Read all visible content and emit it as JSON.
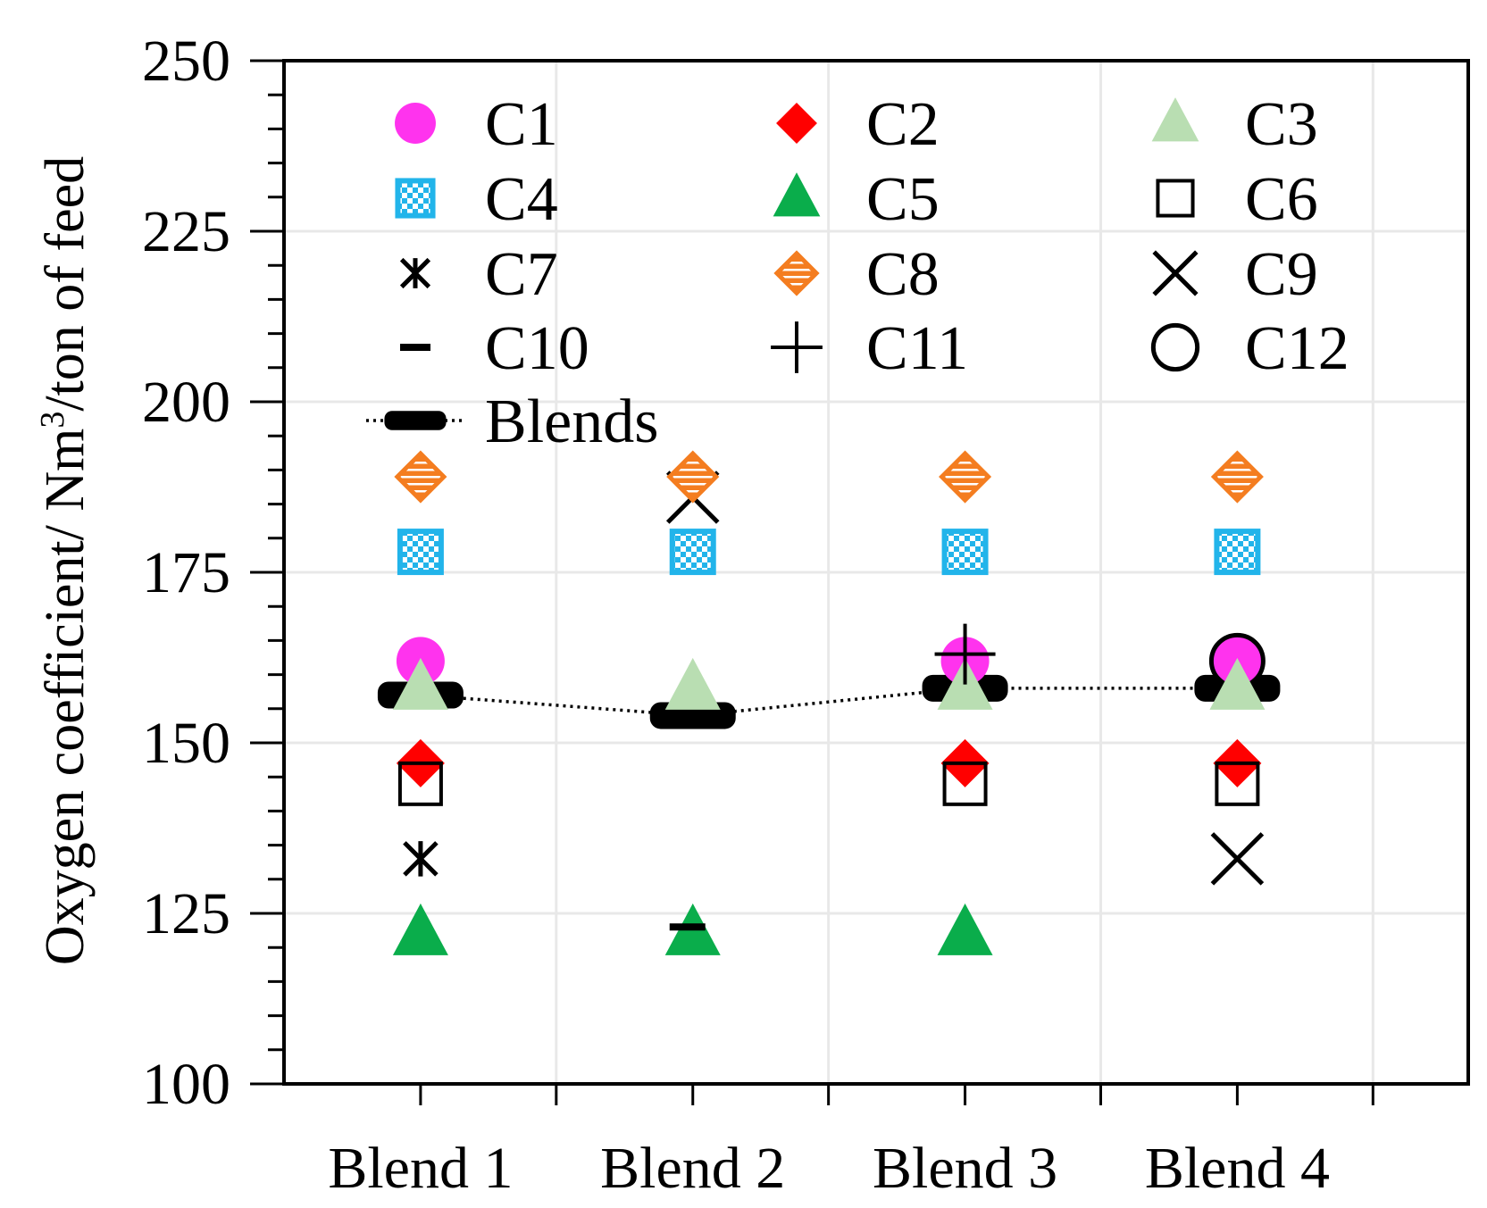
{
  "chart_data": {
    "type": "scatter",
    "title": "",
    "xlabel": "",
    "ylabel": "Oxygen coefficient/ Nm³/ton of feed",
    "ylabel_parts": {
      "pre": "Oxygen coefficient/ Nm",
      "sup": "3",
      "post": "/ton of feed"
    },
    "categories": [
      "Blend 1",
      "Blend 2",
      "Blend 3",
      "Blend 4"
    ],
    "ylim": [
      100,
      250
    ],
    "yticks": [
      "100",
      "125",
      "150",
      "175",
      "200",
      "225",
      "250"
    ],
    "grid": true,
    "legend_position": "top",
    "series": [
      {
        "name": "C1",
        "marker": "circle",
        "color": "#ff33ee",
        "values": [
          162,
          null,
          162,
          162
        ]
      },
      {
        "name": "C2",
        "marker": "diamond",
        "color": "#ff0000",
        "values": [
          147,
          null,
          147,
          147
        ]
      },
      {
        "name": "C3",
        "marker": "triangle",
        "color": "#b9deb2",
        "values": [
          158,
          158,
          158,
          158
        ]
      },
      {
        "name": "C4",
        "marker": "checker-square",
        "color": "#22b4ea",
        "values": [
          178,
          178,
          178,
          178
        ]
      },
      {
        "name": "C5",
        "marker": "triangle",
        "color": "#0aad4b",
        "values": [
          122,
          122,
          122,
          null
        ]
      },
      {
        "name": "C6",
        "marker": "square-open",
        "color": "#000000",
        "values": [
          144,
          null,
          144,
          144
        ]
      },
      {
        "name": "C7",
        "marker": "asterisk",
        "color": "#000000",
        "values": [
          133,
          null,
          null,
          null
        ]
      },
      {
        "name": "C8",
        "marker": "striped-diamond",
        "color": "#f47d20",
        "values": [
          189,
          189,
          189,
          189
        ]
      },
      {
        "name": "C9",
        "marker": "x",
        "color": "#000000",
        "values": [
          null,
          186,
          null,
          133
        ]
      },
      {
        "name": "C10",
        "marker": "dash",
        "color": "#000000",
        "values": [
          null,
          123,
          null,
          null
        ]
      },
      {
        "name": "C11",
        "marker": "plus",
        "color": "#000000",
        "values": [
          null,
          null,
          163,
          null
        ]
      },
      {
        "name": "C12",
        "marker": "circle-open",
        "color": "#000000",
        "values": [
          null,
          null,
          null,
          162
        ]
      },
      {
        "name": "Blends",
        "marker": "thick-dash",
        "color": "#000000",
        "line": "dotted",
        "values": [
          157,
          154,
          158,
          158
        ]
      }
    ]
  }
}
